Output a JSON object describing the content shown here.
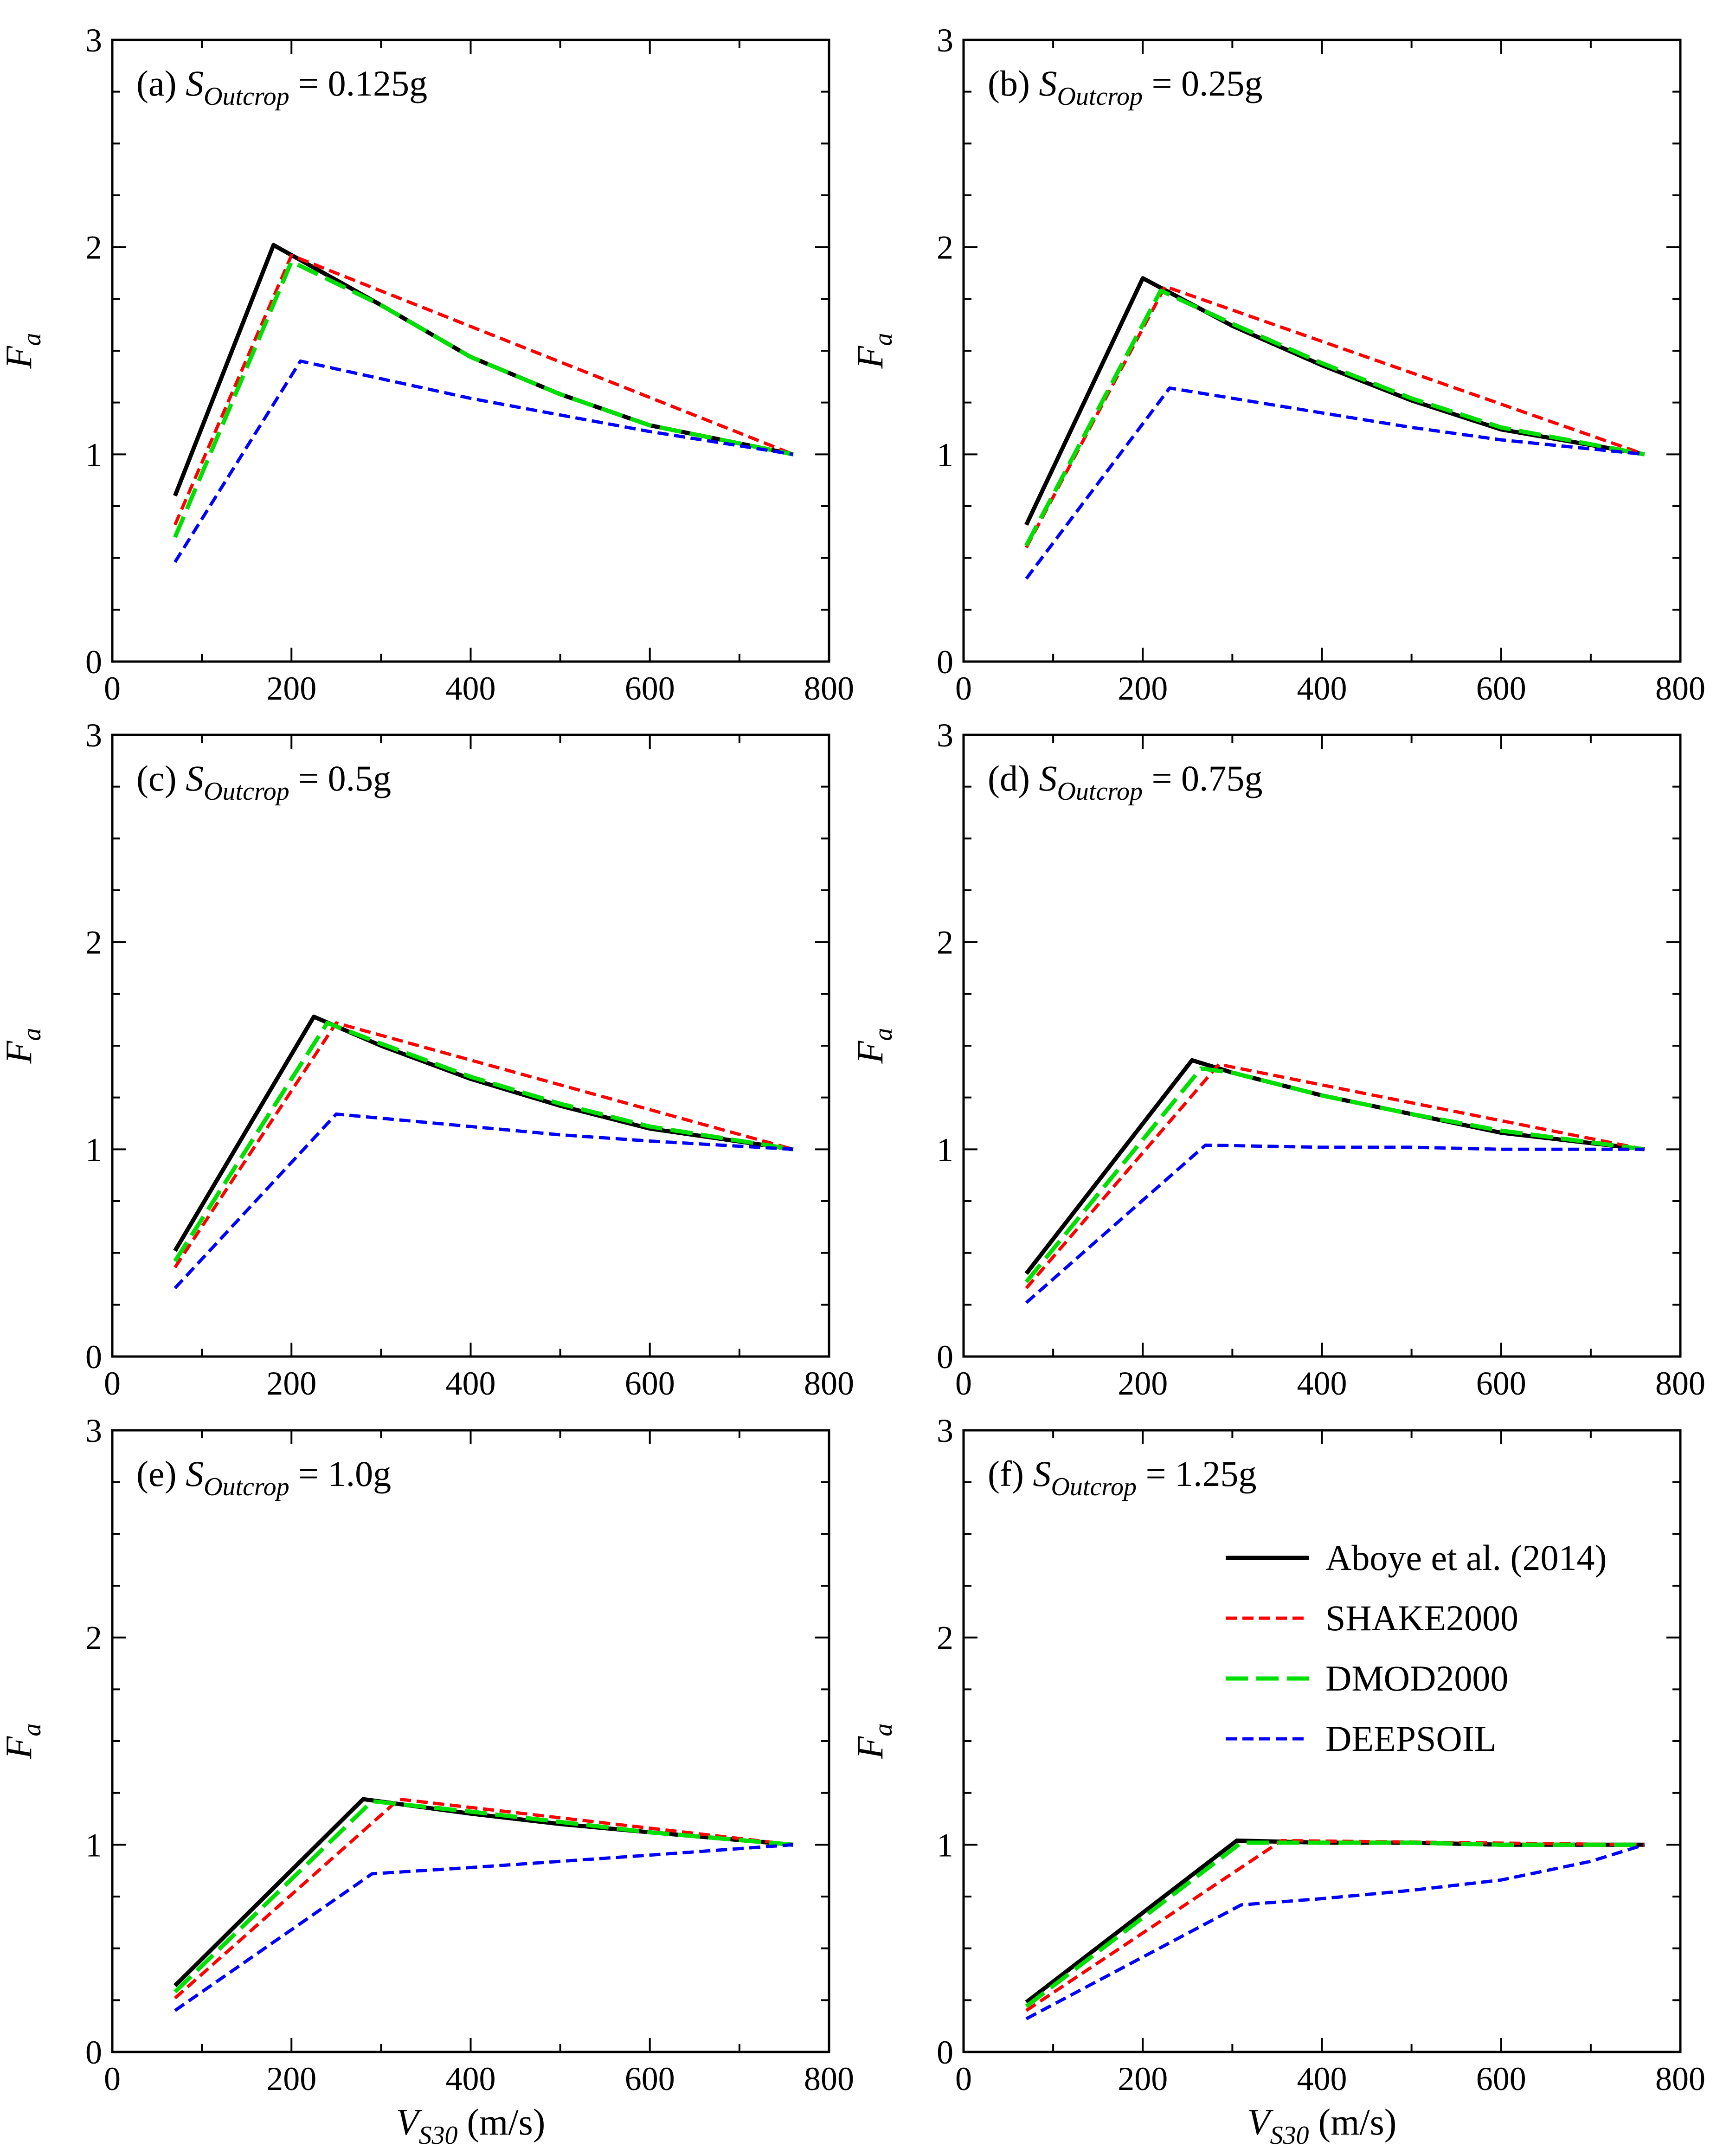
{
  "figure": {
    "xlabel": {
      "main": "V",
      "sub": "S30",
      "unit": " (m/s)"
    },
    "ylabel": {
      "main": "F",
      "sub": "a"
    },
    "series_styles": [
      {
        "name": "Aboye et al. (2014)",
        "color": "#000000",
        "dash": "solid"
      },
      {
        "name": "SHAKE2000",
        "color": "#ff0000",
        "dash": "short-dash"
      },
      {
        "name": "DMOD2000",
        "color": "#00e000",
        "dash": "long-dash"
      },
      {
        "name": "DEEPSOIL",
        "color": "#0000ff",
        "dash": "short-dash"
      }
    ],
    "legend": {
      "placement": "panel (f), right",
      "entries": [
        "Aboye et al. (2014)",
        "SHAKE2000",
        "DMOD2000",
        "DEEPSOIL"
      ]
    }
  },
  "chart_data": [
    {
      "type": "line",
      "panel_label": {
        "prefix": "(a) ",
        "var": "S",
        "sub": "Outcrop",
        "suffix": " = 0.125g"
      },
      "xlim": [
        0,
        800
      ],
      "ylim": [
        0,
        3
      ],
      "xticks": [
        "0",
        "200",
        "400",
        "600",
        "800"
      ],
      "yticks": [
        "0",
        "1",
        "2",
        "3"
      ],
      "xlabel_shown": false,
      "series": [
        {
          "name": "Aboye et al. (2014)",
          "points": [
            [
              70,
              0.8
            ],
            [
              180,
              2.01
            ],
            [
              300,
              1.72
            ],
            [
              400,
              1.47
            ],
            [
              500,
              1.29
            ],
            [
              600,
              1.14
            ],
            [
              760,
              1.0
            ]
          ]
        },
        {
          "name": "SHAKE2000",
          "points": [
            [
              70,
              0.66
            ],
            [
              200,
              1.96
            ],
            [
              760,
              1.0
            ]
          ]
        },
        {
          "name": "DMOD2000",
          "points": [
            [
              70,
              0.6
            ],
            [
              200,
              1.93
            ],
            [
              300,
              1.72
            ],
            [
              400,
              1.47
            ],
            [
              500,
              1.29
            ],
            [
              600,
              1.14
            ],
            [
              760,
              1.0
            ]
          ]
        },
        {
          "name": "DEEPSOIL",
          "points": [
            [
              70,
              0.48
            ],
            [
              210,
              1.45
            ],
            [
              400,
              1.27
            ],
            [
              500,
              1.19
            ],
            [
              600,
              1.11
            ],
            [
              760,
              1.0
            ]
          ]
        }
      ]
    },
    {
      "type": "line",
      "panel_label": {
        "prefix": "(b) ",
        "var": "S",
        "sub": "Outcrop",
        "suffix": " = 0.25g"
      },
      "xlim": [
        0,
        800
      ],
      "ylim": [
        0,
        3
      ],
      "xticks": [
        "0",
        "200",
        "400",
        "600",
        "800"
      ],
      "yticks": [
        "0",
        "1",
        "2",
        "3"
      ],
      "xlabel_shown": false,
      "series": [
        {
          "name": "Aboye et al. (2014)",
          "points": [
            [
              70,
              0.66
            ],
            [
              200,
              1.85
            ],
            [
              300,
              1.62
            ],
            [
              400,
              1.43
            ],
            [
              500,
              1.26
            ],
            [
              600,
              1.12
            ],
            [
              760,
              1.0
            ]
          ]
        },
        {
          "name": "SHAKE2000",
          "points": [
            [
              70,
              0.55
            ],
            [
              225,
              1.81
            ],
            [
              760,
              1.0
            ]
          ]
        },
        {
          "name": "DMOD2000",
          "points": [
            [
              70,
              0.56
            ],
            [
              220,
              1.79
            ],
            [
              300,
              1.63
            ],
            [
              400,
              1.44
            ],
            [
              500,
              1.27
            ],
            [
              600,
              1.13
            ],
            [
              760,
              1.0
            ]
          ]
        },
        {
          "name": "DEEPSOIL",
          "points": [
            [
              70,
              0.4
            ],
            [
              230,
              1.32
            ],
            [
              400,
              1.2
            ],
            [
              500,
              1.13
            ],
            [
              600,
              1.07
            ],
            [
              760,
              1.0
            ]
          ]
        }
      ]
    },
    {
      "type": "line",
      "panel_label": {
        "prefix": "(c) ",
        "var": "S",
        "sub": "Outcrop",
        "suffix": " = 0.5g"
      },
      "xlim": [
        0,
        800
      ],
      "ylim": [
        0,
        3
      ],
      "xticks": [
        "0",
        "200",
        "400",
        "600",
        "800"
      ],
      "yticks": [
        "0",
        "1",
        "2",
        "3"
      ],
      "xlabel_shown": false,
      "series": [
        {
          "name": "Aboye et al. (2014)",
          "points": [
            [
              70,
              0.51
            ],
            [
              225,
              1.64
            ],
            [
              300,
              1.5
            ],
            [
              400,
              1.34
            ],
            [
              500,
              1.21
            ],
            [
              600,
              1.1
            ],
            [
              760,
              1.0
            ]
          ]
        },
        {
          "name": "SHAKE2000",
          "points": [
            [
              70,
              0.43
            ],
            [
              250,
              1.61
            ],
            [
              760,
              1.0
            ]
          ]
        },
        {
          "name": "DMOD2000",
          "points": [
            [
              70,
              0.46
            ],
            [
              240,
              1.61
            ],
            [
              300,
              1.51
            ],
            [
              400,
              1.35
            ],
            [
              500,
              1.22
            ],
            [
              600,
              1.11
            ],
            [
              760,
              1.0
            ]
          ]
        },
        {
          "name": "DEEPSOIL",
          "points": [
            [
              70,
              0.33
            ],
            [
              250,
              1.17
            ],
            [
              400,
              1.11
            ],
            [
              500,
              1.07
            ],
            [
              600,
              1.04
            ],
            [
              760,
              1.0
            ]
          ]
        }
      ]
    },
    {
      "type": "line",
      "panel_label": {
        "prefix": "(d) ",
        "var": "S",
        "sub": "Outcrop",
        "suffix": " = 0.75g"
      },
      "xlim": [
        0,
        800
      ],
      "ylim": [
        0,
        3
      ],
      "xticks": [
        "0",
        "200",
        "400",
        "600",
        "800"
      ],
      "yticks": [
        "0",
        "1",
        "2",
        "3"
      ],
      "xlabel_shown": false,
      "series": [
        {
          "name": "Aboye et al. (2014)",
          "points": [
            [
              70,
              0.4
            ],
            [
              255,
              1.43
            ],
            [
              300,
              1.37
            ],
            [
              400,
              1.26
            ],
            [
              500,
              1.17
            ],
            [
              600,
              1.08
            ],
            [
              760,
              1.0
            ]
          ]
        },
        {
          "name": "SHAKE2000",
          "points": [
            [
              70,
              0.33
            ],
            [
              285,
              1.41
            ],
            [
              760,
              1.0
            ]
          ]
        },
        {
          "name": "DMOD2000",
          "points": [
            [
              70,
              0.36
            ],
            [
              265,
              1.39
            ],
            [
              300,
              1.37
            ],
            [
              400,
              1.26
            ],
            [
              500,
              1.17
            ],
            [
              600,
              1.09
            ],
            [
              760,
              1.0
            ]
          ]
        },
        {
          "name": "DEEPSOIL",
          "points": [
            [
              70,
              0.26
            ],
            [
              270,
              1.02
            ],
            [
              400,
              1.01
            ],
            [
              500,
              1.01
            ],
            [
              600,
              1.0
            ],
            [
              760,
              1.0
            ]
          ]
        }
      ]
    },
    {
      "type": "line",
      "panel_label": {
        "prefix": "(e) ",
        "var": "S",
        "sub": "Outcrop",
        "suffix": " = 1.0g"
      },
      "xlim": [
        0,
        800
      ],
      "ylim": [
        0,
        3
      ],
      "xticks": [
        "0",
        "200",
        "400",
        "600",
        "800"
      ],
      "yticks": [
        "0",
        "1",
        "2",
        "3"
      ],
      "xlabel_shown": true,
      "series": [
        {
          "name": "Aboye et al. (2014)",
          "points": [
            [
              70,
              0.32
            ],
            [
              280,
              1.22
            ],
            [
              400,
              1.15
            ],
            [
              500,
              1.1
            ],
            [
              600,
              1.06
            ],
            [
              760,
              1.0
            ]
          ]
        },
        {
          "name": "SHAKE2000",
          "points": [
            [
              70,
              0.26
            ],
            [
              320,
              1.22
            ],
            [
              760,
              1.0
            ]
          ]
        },
        {
          "name": "DMOD2000",
          "points": [
            [
              70,
              0.29
            ],
            [
              290,
              1.21
            ],
            [
              400,
              1.16
            ],
            [
              500,
              1.11
            ],
            [
              600,
              1.06
            ],
            [
              760,
              1.0
            ]
          ]
        },
        {
          "name": "DEEPSOIL",
          "points": [
            [
              70,
              0.2
            ],
            [
              290,
              0.86
            ],
            [
              400,
              0.89
            ],
            [
              500,
              0.92
            ],
            [
              600,
              0.95
            ],
            [
              760,
              1.0
            ]
          ]
        }
      ]
    },
    {
      "type": "line",
      "panel_label": {
        "prefix": "(f) ",
        "var": "S",
        "sub": "Outcrop",
        "suffix": " = 1.25g"
      },
      "xlim": [
        0,
        800
      ],
      "ylim": [
        0,
        3
      ],
      "xticks": [
        "0",
        "200",
        "400",
        "600",
        "800"
      ],
      "yticks": [
        "0",
        "1",
        "2",
        "3"
      ],
      "xlabel_shown": true,
      "series": [
        {
          "name": "Aboye et al. (2014)",
          "points": [
            [
              70,
              0.24
            ],
            [
              305,
              1.02
            ],
            [
              400,
              1.01
            ],
            [
              500,
              1.01
            ],
            [
              600,
              1.0
            ],
            [
              760,
              1.0
            ]
          ]
        },
        {
          "name": "SHAKE2000",
          "points": [
            [
              70,
              0.2
            ],
            [
              355,
              1.02
            ],
            [
              760,
              1.0
            ]
          ]
        },
        {
          "name": "DMOD2000",
          "points": [
            [
              70,
              0.22
            ],
            [
              310,
              1.01
            ],
            [
              400,
              1.01
            ],
            [
              500,
              1.01
            ],
            [
              600,
              1.0
            ],
            [
              760,
              1.0
            ]
          ]
        },
        {
          "name": "DEEPSOIL",
          "points": [
            [
              70,
              0.16
            ],
            [
              310,
              0.71
            ],
            [
              400,
              0.74
            ],
            [
              500,
              0.78
            ],
            [
              600,
              0.83
            ],
            [
              700,
              0.92
            ],
            [
              760,
              1.0
            ]
          ]
        }
      ]
    }
  ]
}
